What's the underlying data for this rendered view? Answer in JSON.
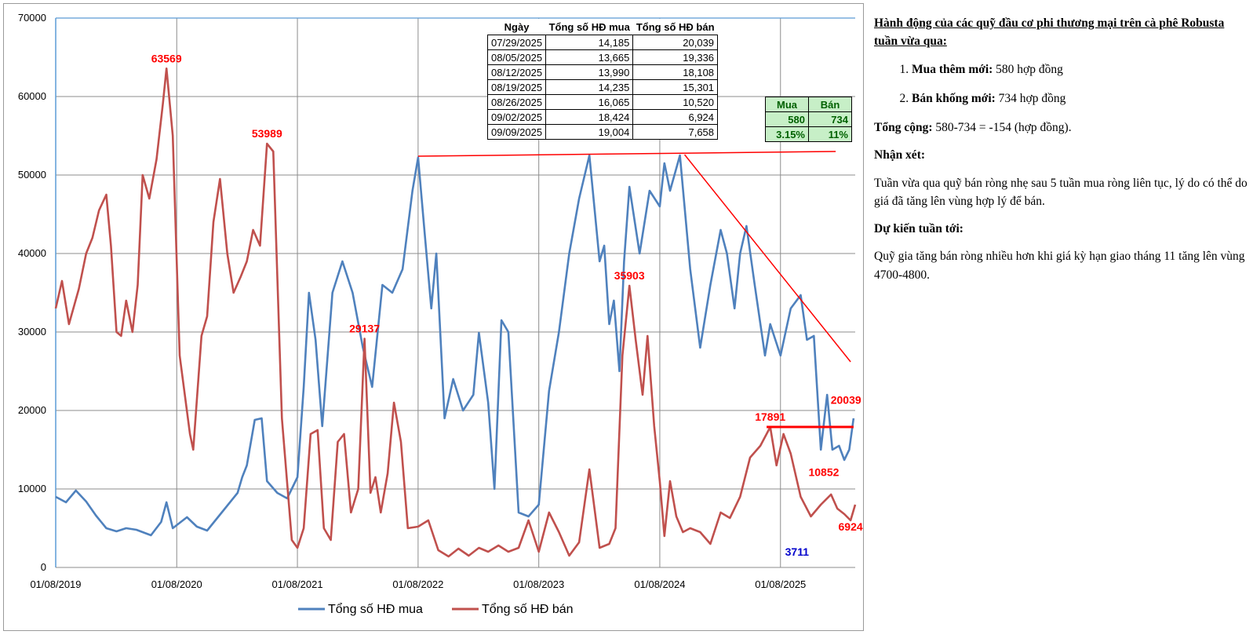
{
  "chart_data": {
    "type": "line",
    "ylim": [
      0,
      70000
    ],
    "yticks": [
      "0",
      "10000",
      "20000",
      "30000",
      "40000",
      "50000",
      "60000",
      "70000"
    ],
    "xlim": [
      "2019-08-01",
      "2026-03-15"
    ],
    "xtick_labels": [
      "01/08/2019",
      "01/08/2020",
      "01/08/2021",
      "01/08/2022",
      "01/08/2023",
      "01/08/2024",
      "01/08/2025"
    ],
    "grid": true,
    "legend_position": "bottom",
    "series": [
      {
        "name": "Tổng số  HĐ mua",
        "color": "#4f81bd",
        "points": [
          [
            "2019-08-01",
            9000
          ],
          [
            "2019-09-01",
            8300
          ],
          [
            "2019-10-01",
            9800
          ],
          [
            "2019-11-01",
            8400
          ],
          [
            "2019-12-01",
            6600
          ],
          [
            "2020-01-01",
            5000
          ],
          [
            "2020-02-01",
            4600
          ],
          [
            "2020-03-01",
            5000
          ],
          [
            "2020-04-01",
            4800
          ],
          [
            "2020-05-15",
            4100
          ],
          [
            "2020-06-15",
            5800
          ],
          [
            "2020-07-01",
            8300
          ],
          [
            "2020-07-20",
            5000
          ],
          [
            "2020-09-01",
            6400
          ],
          [
            "2020-10-01",
            5200
          ],
          [
            "2020-11-01",
            4700
          ],
          [
            "2020-12-15",
            7000
          ],
          [
            "2021-02-01",
            9500
          ],
          [
            "2021-02-15",
            11500
          ],
          [
            "2021-03-01",
            13000
          ],
          [
            "2021-03-25",
            18800
          ],
          [
            "2021-04-15",
            19000
          ],
          [
            "2021-05-01",
            11000
          ],
          [
            "2021-06-01",
            9500
          ],
          [
            "2021-07-01",
            8800
          ],
          [
            "2021-08-01",
            11500
          ],
          [
            "2021-08-20",
            23000
          ],
          [
            "2021-09-05",
            35000
          ],
          [
            "2021-09-25",
            29000
          ],
          [
            "2021-10-15",
            18000
          ],
          [
            "2021-11-15",
            35000
          ],
          [
            "2021-12-15",
            39000
          ],
          [
            "2022-01-15",
            35000
          ],
          [
            "2022-02-15",
            28000
          ],
          [
            "2022-03-15",
            23000
          ],
          [
            "2022-04-15",
            36000
          ],
          [
            "2022-05-15",
            35000
          ],
          [
            "2022-06-15",
            38000
          ],
          [
            "2022-07-15",
            48000
          ],
          [
            "2022-08-01",
            52234
          ],
          [
            "2022-08-20",
            43000
          ],
          [
            "2022-09-10",
            33000
          ],
          [
            "2022-09-25",
            40000
          ],
          [
            "2022-10-20",
            19000
          ],
          [
            "2022-11-15",
            24000
          ],
          [
            "2022-12-15",
            20000
          ],
          [
            "2023-01-15",
            22000
          ],
          [
            "2023-02-01",
            29900
          ],
          [
            "2023-03-01",
            21000
          ],
          [
            "2023-03-20",
            10000
          ],
          [
            "2023-04-10",
            31500
          ],
          [
            "2023-05-01",
            30000
          ],
          [
            "2023-06-01",
            7000
          ],
          [
            "2023-07-01",
            6500
          ],
          [
            "2023-08-01",
            8000
          ],
          [
            "2023-09-01",
            22500
          ],
          [
            "2023-10-01",
            30000
          ],
          [
            "2023-11-01",
            40000
          ],
          [
            "2023-12-01",
            47000
          ],
          [
            "2024-01-01",
            52500
          ],
          [
            "2024-02-01",
            39000
          ],
          [
            "2024-02-15",
            41000
          ],
          [
            "2024-03-01",
            31000
          ],
          [
            "2024-03-15",
            34000
          ],
          [
            "2024-04-01",
            25000
          ],
          [
            "2024-04-15",
            39000
          ],
          [
            "2024-05-01",
            48500
          ],
          [
            "2024-06-01",
            40000
          ],
          [
            "2024-07-01",
            48000
          ],
          [
            "2024-08-01",
            46000
          ],
          [
            "2024-08-15",
            51500
          ],
          [
            "2024-09-01",
            48000
          ],
          [
            "2024-10-01",
            52500
          ],
          [
            "2024-11-01",
            38000
          ],
          [
            "2024-12-01",
            28000
          ],
          [
            "2025-01-01",
            36000
          ],
          [
            "2025-02-01",
            43000
          ],
          [
            "2025-02-20",
            40000
          ],
          [
            "2025-03-15",
            33000
          ],
          [
            "2025-04-01",
            40000
          ],
          [
            "2025-04-20",
            43500
          ],
          [
            "2025-05-15",
            36000
          ],
          [
            "2025-06-15",
            27000
          ],
          [
            "2025-07-01",
            31000
          ],
          [
            "2025-08-01",
            27000
          ],
          [
            "2025-09-01",
            33000
          ],
          [
            "2025-10-01",
            34700
          ],
          [
            "2025-10-20",
            29000
          ],
          [
            "2025-11-10",
            29500
          ],
          [
            "2025-12-01",
            15000
          ],
          [
            "2025-12-20",
            22000
          ],
          [
            "2026-01-05",
            15000
          ],
          [
            "2026-01-25",
            15500
          ],
          [
            "2026-02-10",
            13700
          ],
          [
            "2026-02-25",
            15000
          ],
          [
            "2026-03-10",
            19004
          ]
        ]
      },
      {
        "name": "Tổng số HĐ bán",
        "color": "#c0504d",
        "points": [
          [
            "2019-08-01",
            33000
          ],
          [
            "2019-08-20",
            36500
          ],
          [
            "2019-09-10",
            31000
          ],
          [
            "2019-10-10",
            35500
          ],
          [
            "2019-11-01",
            40000
          ],
          [
            "2019-11-20",
            42000
          ],
          [
            "2019-12-10",
            45500
          ],
          [
            "2020-01-01",
            47500
          ],
          [
            "2020-01-15",
            41000
          ],
          [
            "2020-02-01",
            30000
          ],
          [
            "2020-02-15",
            29500
          ],
          [
            "2020-03-01",
            34000
          ],
          [
            "2020-03-20",
            30000
          ],
          [
            "2020-04-05",
            36000
          ],
          [
            "2020-04-20",
            50000
          ],
          [
            "2020-05-10",
            47000
          ],
          [
            "2020-06-01",
            52000
          ],
          [
            "2020-06-20",
            59000
          ],
          [
            "2020-07-01",
            63569
          ],
          [
            "2020-07-20",
            55000
          ],
          [
            "2020-08-10",
            27000
          ],
          [
            "2020-09-10",
            17000
          ],
          [
            "2020-09-20",
            15000
          ],
          [
            "2020-10-15",
            29500
          ],
          [
            "2020-11-01",
            32000
          ],
          [
            "2020-11-20",
            44000
          ],
          [
            "2020-12-10",
            49500
          ],
          [
            "2021-01-01",
            40000
          ],
          [
            "2021-01-20",
            35000
          ],
          [
            "2021-02-10",
            37000
          ],
          [
            "2021-03-01",
            39000
          ],
          [
            "2021-03-20",
            43000
          ],
          [
            "2021-04-10",
            41000
          ],
          [
            "2021-05-01",
            53989
          ],
          [
            "2021-05-20",
            53000
          ],
          [
            "2021-06-15",
            19000
          ],
          [
            "2021-07-15",
            3500
          ],
          [
            "2021-08-01",
            2500
          ],
          [
            "2021-08-20",
            5000
          ],
          [
            "2021-09-10",
            17000
          ],
          [
            "2021-10-01",
            17500
          ],
          [
            "2021-10-20",
            5000
          ],
          [
            "2021-11-10",
            3500
          ],
          [
            "2021-12-01",
            16000
          ],
          [
            "2021-12-20",
            17000
          ],
          [
            "2022-01-10",
            7000
          ],
          [
            "2022-02-01",
            10000
          ],
          [
            "2022-02-20",
            29137
          ],
          [
            "2022-03-10",
            9500
          ],
          [
            "2022-03-25",
            11500
          ],
          [
            "2022-04-10",
            7000
          ],
          [
            "2022-05-01",
            12000
          ],
          [
            "2022-05-20",
            21000
          ],
          [
            "2022-06-10",
            16000
          ],
          [
            "2022-07-01",
            5000
          ],
          [
            "2022-08-01",
            5200
          ],
          [
            "2022-09-01",
            6000
          ],
          [
            "2022-10-01",
            2200
          ],
          [
            "2022-11-01",
            1400
          ],
          [
            "2022-12-01",
            2400
          ],
          [
            "2023-01-01",
            1500
          ],
          [
            "2023-02-01",
            2500
          ],
          [
            "2023-03-01",
            2000
          ],
          [
            "2023-04-01",
            2800
          ],
          [
            "2023-05-01",
            2000
          ],
          [
            "2023-06-01",
            2500
          ],
          [
            "2023-07-01",
            6000
          ],
          [
            "2023-08-01",
            2000
          ],
          [
            "2023-09-01",
            7000
          ],
          [
            "2023-10-01",
            4500
          ],
          [
            "2023-11-01",
            1500
          ],
          [
            "2023-12-01",
            3200
          ],
          [
            "2024-01-01",
            12500
          ],
          [
            "2024-02-01",
            2500
          ],
          [
            "2024-03-01",
            3000
          ],
          [
            "2024-03-20",
            5000
          ],
          [
            "2024-04-10",
            27000
          ],
          [
            "2024-05-01",
            35903
          ],
          [
            "2024-05-20",
            29000
          ],
          [
            "2024-06-10",
            22000
          ],
          [
            "2024-06-25",
            29500
          ],
          [
            "2024-07-15",
            18000
          ],
          [
            "2024-08-01",
            11000
          ],
          [
            "2024-08-15",
            4000
          ],
          [
            "2024-09-01",
            11000
          ],
          [
            "2024-09-20",
            6500
          ],
          [
            "2024-10-10",
            4500
          ],
          [
            "2024-11-01",
            5000
          ],
          [
            "2024-12-01",
            4500
          ],
          [
            "2025-01-01",
            3000
          ],
          [
            "2025-02-01",
            7000
          ],
          [
            "2025-03-01",
            6300
          ],
          [
            "2025-04-01",
            9000
          ],
          [
            "2025-05-01",
            14000
          ],
          [
            "2025-06-01",
            15500
          ],
          [
            "2025-07-01",
            17891
          ],
          [
            "2025-07-20",
            13000
          ],
          [
            "2025-08-10",
            17000
          ],
          [
            "2025-09-01",
            14500
          ],
          [
            "2025-10-01",
            9000
          ],
          [
            "2025-11-01",
            6500
          ],
          [
            "2025-12-01",
            8000
          ],
          [
            "2026-01-01",
            9300
          ],
          [
            "2026-01-20",
            7500
          ],
          [
            "2026-02-10",
            6800
          ],
          [
            "2026-03-01",
            6000
          ],
          [
            "2026-03-15",
            8000
          ]
        ]
      }
    ],
    "annotations": [
      {
        "text": "63569",
        "date": "2020-07-01",
        "value": 63569,
        "color": "#ff0000"
      },
      {
        "text": "53989",
        "date": "2021-05-01",
        "value": 53989,
        "color": "#ff0000"
      },
      {
        "text": "29137",
        "date": "2022-02-20",
        "value": 29137,
        "color": "#ff0000"
      },
      {
        "text": "35903",
        "date": "2024-05-01",
        "value": 35903,
        "color": "#ff0000"
      },
      {
        "text": "17891",
        "date": "2025-07-01",
        "value": 17891,
        "color": "#ff0000"
      },
      {
        "text": "10852",
        "date": "2025-12-10",
        "value": 10852,
        "color": "#ff0000"
      },
      {
        "text": "20039",
        "date": "2026-02-15",
        "value": 20039,
        "color": "#ff0000"
      },
      {
        "text": "6924",
        "date": "2026-03-01",
        "value": 6924,
        "color": "#ff0000"
      },
      {
        "text": "3711",
        "date": "2025-09-20",
        "value": 3711,
        "color": "#0000cc"
      }
    ],
    "trend_lines": [
      {
        "from": [
          "2022-08-01",
          52400
        ],
        "to": [
          "2026-01-15",
          53000
        ],
        "color": "#ff0000",
        "width": 1.5
      },
      {
        "from": [
          "2024-10-15",
          52600
        ],
        "to": [
          "2026-03-01",
          26200
        ],
        "color": "#ff0000",
        "width": 1.5
      },
      {
        "from": [
          "2025-06-20",
          17900
        ],
        "to": [
          "2026-03-10",
          17900
        ],
        "color": "#ff0000",
        "width": 3
      }
    ]
  },
  "data_table": {
    "headers": [
      "Ngày",
      "Tổng số  HĐ mua",
      "Tổng số HĐ bán"
    ],
    "rows": [
      [
        "07/29/2025",
        "14,185",
        "20,039"
      ],
      [
        "08/05/2025",
        "13,665",
        "19,336"
      ],
      [
        "08/12/2025",
        "13,990",
        "18,108"
      ],
      [
        "08/19/2025",
        "14,235",
        "15,301"
      ],
      [
        "08/26/2025",
        "16,065",
        "10,520"
      ],
      [
        "09/02/2025",
        "18,424",
        "6,924"
      ],
      [
        "09/09/2025",
        "19,004",
        "7,658"
      ]
    ]
  },
  "flow_table": {
    "headers": [
      "Mua",
      "Bán"
    ],
    "rows": [
      [
        "580",
        "734"
      ],
      [
        "3.15%",
        "11%"
      ]
    ],
    "color_bg": "#c7efc7",
    "color_text": "#006100"
  },
  "commentary": {
    "heading": "Hành động của các quỹ đầu cơ phi thương mại trên cà phê Robusta tuần vừa qua:",
    "items": [
      {
        "label": "Mua thêm mới:",
        "text": " 580 hợp đồng"
      },
      {
        "label": "Bán khống mới:",
        "text": " 734 hợp đồng"
      }
    ],
    "total_label": "Tổng cộng:",
    "total_text": " 580-734 = -154 (hợp đồng).",
    "remark_heading": "Nhận xét:",
    "remark_text": "Tuần vừa qua quỹ bán ròng nhẹ sau 5 tuần mua ròng liên tục, lý do có thể do giá đã tăng lên vùng hợp lý để bán.",
    "forecast_heading": "Dự kiến tuần tới:",
    "forecast_text": "Quỹ gia tăng bán ròng nhiều hơn khi giá kỳ hạn giao tháng 11 tăng lên vùng 4700-4800."
  }
}
